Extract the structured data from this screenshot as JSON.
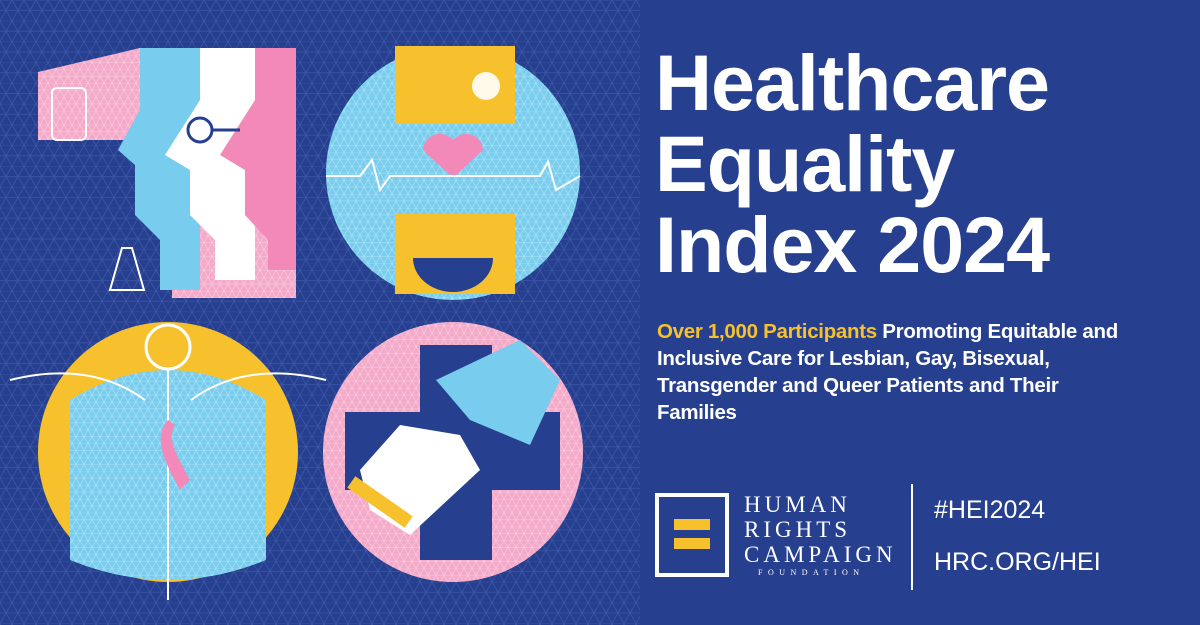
{
  "title_lines": [
    "Healthcare",
    "Equality",
    "Index 2024"
  ],
  "subtitle": {
    "highlight": "Over 1,000 Participants",
    "text": "Promoting Equitable and Inclusive Care for Lesbian, Gay, Bisexual, Transgender and Queer Patients and Their Families"
  },
  "logo": {
    "lines": [
      "HUMAN",
      "RIGHTS",
      "CAMPAIGN"
    ],
    "foundation": "FOUNDATION"
  },
  "hashtag": "#HEI2024",
  "url": "HRC.ORG/HEI"
}
